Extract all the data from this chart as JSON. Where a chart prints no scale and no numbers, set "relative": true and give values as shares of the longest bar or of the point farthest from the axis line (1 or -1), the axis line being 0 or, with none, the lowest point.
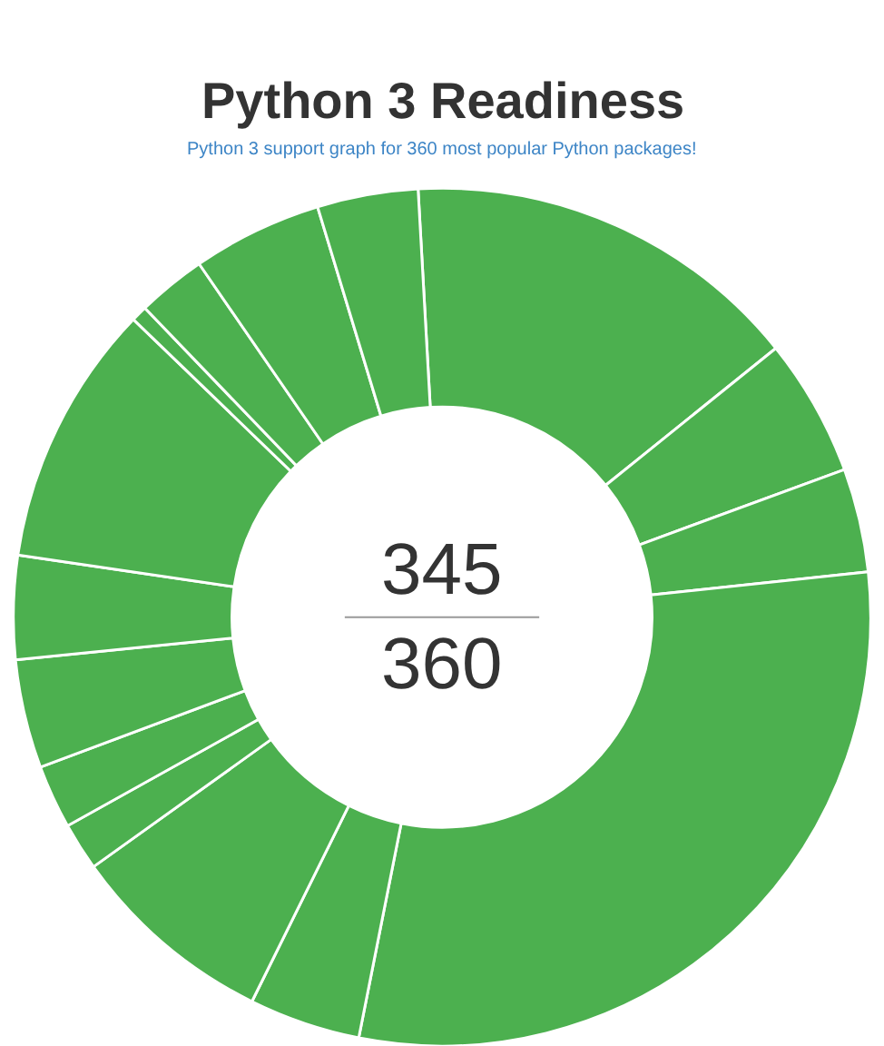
{
  "chart_data": {
    "type": "donut",
    "title": "Python 3 Readiness",
    "subtitle": "Python 3 support graph for 360 most popular Python packages!",
    "categories": [
      null,
      null,
      null,
      null,
      null,
      null,
      null,
      null,
      null,
      null,
      null,
      null,
      null,
      null,
      null
    ],
    "values": [
      15.1,
      5.2,
      3.9,
      29.8,
      4.2,
      7.8,
      1.8,
      2.4,
      4.1,
      3.9,
      9.9,
      0.6,
      2.6,
      4.9,
      3.8
    ],
    "colors": [
      "#4cb04f",
      "#4cb04f",
      "#4cb04f",
      "#4cb04f",
      "#4cb04f",
      "#4cb04f",
      "#4cb04f",
      "#4cb04f",
      "#4cb04f",
      "#4cb04f",
      "#4cb04f",
      "#4cb04f",
      "#4cb04f",
      "#4cb04f",
      "#4cb04f"
    ],
    "relative": true,
    "legend": false,
    "annotations": [
      "345",
      "360"
    ]
  }
}
